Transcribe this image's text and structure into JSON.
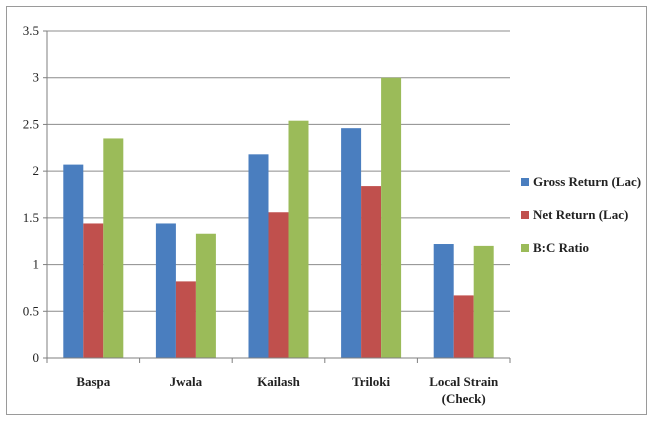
{
  "chart_data": {
    "type": "bar",
    "title": "",
    "xlabel": "",
    "ylabel": "",
    "categories": [
      "Baspa",
      "Jwala",
      "Kailash",
      "Triloki",
      "Local Strain (Check)"
    ],
    "category_lines": [
      [
        "Baspa"
      ],
      [
        "Jwala"
      ],
      [
        "Kailash"
      ],
      [
        "Triloki"
      ],
      [
        "Local Strain",
        "(Check)"
      ]
    ],
    "series": [
      {
        "name": "Gross Return (Lac)",
        "color": "#4a7ebf",
        "values": [
          2.07,
          1.44,
          2.18,
          2.46,
          1.22
        ]
      },
      {
        "name": "Net Return (Lac)",
        "color": "#c0504d",
        "values": [
          1.44,
          0.82,
          1.56,
          1.84,
          0.67
        ]
      },
      {
        "name": "B:C Ratio",
        "color": "#9bbb59",
        "values": [
          2.35,
          1.33,
          2.54,
          3.0,
          1.2
        ]
      }
    ],
    "ylim": [
      0,
      3.5
    ],
    "yticks": [
      "0",
      "0.5",
      "1",
      "1.5",
      "2",
      "2.5",
      "3",
      "3.5"
    ],
    "grid": true,
    "legend_position": "right"
  }
}
